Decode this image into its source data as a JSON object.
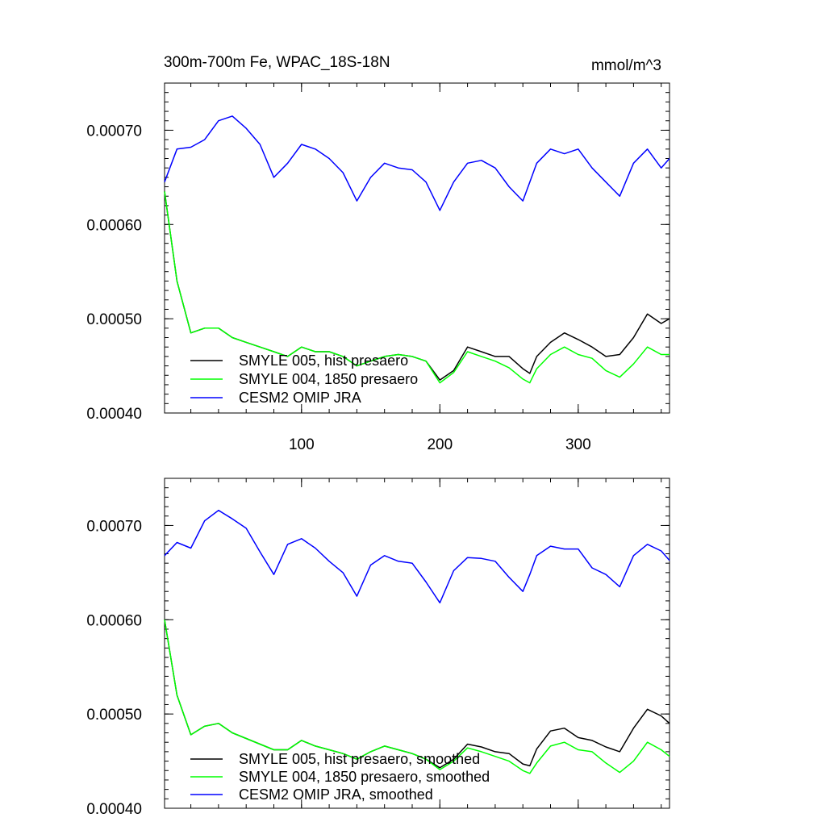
{
  "chart_data": [
    {
      "type": "line",
      "title": "300m-700m Fe, WPAC_18S-18N",
      "units": "mmol/m^3",
      "xlim": [
        1,
        366
      ],
      "ylim": [
        0.0004,
        0.00075
      ],
      "xticks": [
        100,
        200,
        300
      ],
      "xtick_labels": [
        "100",
        "200",
        "300"
      ],
      "yticks": [
        0.0004,
        0.0005,
        0.0006,
        0.0007
      ],
      "ytick_labels": [
        "0.00040",
        "0.00050",
        "0.00060",
        "0.00070"
      ],
      "legend_position": "bottom-left",
      "x": [
        1,
        10,
        20,
        30,
        40,
        50,
        60,
        70,
        80,
        90,
        100,
        110,
        120,
        130,
        140,
        150,
        160,
        170,
        180,
        190,
        200,
        210,
        220,
        230,
        240,
        250,
        260,
        265,
        270,
        280,
        290,
        300,
        310,
        320,
        330,
        340,
        350,
        360,
        366
      ],
      "series": [
        {
          "name": "SMYLE 005, hist presaero",
          "color": "#000000",
          "values": [
            0.000635,
            0.00054,
            0.000485,
            0.00049,
            0.00049,
            0.00048,
            0.000475,
            0.00047,
            0.000465,
            0.00046,
            0.00047,
            0.000465,
            0.000465,
            0.00046,
            0.00045,
            0.000455,
            0.00046,
            0.000462,
            0.00046,
            0.000455,
            0.000435,
            0.000445,
            0.00047,
            0.000465,
            0.00046,
            0.00046,
            0.000447,
            0.000442,
            0.00046,
            0.000475,
            0.000485,
            0.000478,
            0.00047,
            0.00046,
            0.000462,
            0.00048,
            0.000505,
            0.000495,
            0.0005
          ]
        },
        {
          "name": "SMYLE 004, 1850 presaero",
          "color": "#00ff00",
          "values": [
            0.000635,
            0.00054,
            0.000485,
            0.00049,
            0.00049,
            0.00048,
            0.000475,
            0.00047,
            0.000465,
            0.00046,
            0.00047,
            0.000465,
            0.000465,
            0.00046,
            0.00045,
            0.000455,
            0.00046,
            0.000462,
            0.00046,
            0.000455,
            0.000432,
            0.000443,
            0.000465,
            0.00046,
            0.000455,
            0.000448,
            0.000436,
            0.000432,
            0.000447,
            0.000462,
            0.00047,
            0.000462,
            0.000458,
            0.000445,
            0.000438,
            0.000452,
            0.00047,
            0.000462,
            0.000462
          ]
        },
        {
          "name": "CESM2 OMIP JRA",
          "color": "#0000ff",
          "values": [
            0.000645,
            0.00068,
            0.000682,
            0.00069,
            0.00071,
            0.000715,
            0.000702,
            0.000685,
            0.00065,
            0.000665,
            0.000685,
            0.00068,
            0.00067,
            0.000655,
            0.000625,
            0.00065,
            0.000665,
            0.00066,
            0.000658,
            0.000645,
            0.000615,
            0.000645,
            0.000665,
            0.000668,
            0.00066,
            0.00064,
            0.000625,
            0.000645,
            0.000665,
            0.00068,
            0.000675,
            0.00068,
            0.00066,
            0.000645,
            0.00063,
            0.000665,
            0.00068,
            0.00066,
            0.00067
          ]
        }
      ]
    },
    {
      "type": "line",
      "title": "",
      "xlim": [
        1,
        366
      ],
      "ylim": [
        0.0004,
        0.00075
      ],
      "yticks": [
        0.0004,
        0.0005,
        0.0006,
        0.0007
      ],
      "ytick_labels": [
        "0.00040",
        "0.00050",
        "0.00060",
        "0.00070"
      ],
      "legend_position": "bottom-left",
      "x": [
        1,
        10,
        20,
        30,
        40,
        50,
        60,
        70,
        80,
        90,
        100,
        110,
        120,
        130,
        140,
        150,
        160,
        170,
        180,
        190,
        200,
        210,
        220,
        230,
        240,
        250,
        260,
        265,
        270,
        280,
        290,
        300,
        310,
        320,
        330,
        340,
        350,
        360,
        366
      ],
      "series": [
        {
          "name": "SMYLE 005, hist presaero, smoothed",
          "color": "#000000",
          "values": [
            0.0006,
            0.00052,
            0.000478,
            0.000487,
            0.00049,
            0.00048,
            0.000474,
            0.000468,
            0.000462,
            0.000462,
            0.000472,
            0.000466,
            0.000462,
            0.000458,
            0.000452,
            0.00046,
            0.000466,
            0.000462,
            0.000458,
            0.000452,
            0.000443,
            0.000452,
            0.000468,
            0.000465,
            0.00046,
            0.000458,
            0.000447,
            0.000445,
            0.000463,
            0.000482,
            0.000485,
            0.000475,
            0.000472,
            0.000465,
            0.00046,
            0.000485,
            0.000505,
            0.000498,
            0.00049
          ]
        },
        {
          "name": "SMYLE 004, 1850 presaero, smoothed",
          "color": "#00ff00",
          "values": [
            0.0006,
            0.00052,
            0.000478,
            0.000487,
            0.00049,
            0.00048,
            0.000474,
            0.000468,
            0.000462,
            0.000462,
            0.000472,
            0.000466,
            0.000462,
            0.000458,
            0.000452,
            0.00046,
            0.000466,
            0.000462,
            0.000458,
            0.000452,
            0.000441,
            0.00045,
            0.000464,
            0.00046,
            0.000455,
            0.00045,
            0.00044,
            0.000437,
            0.000448,
            0.000466,
            0.00047,
            0.000462,
            0.00046,
            0.000448,
            0.000438,
            0.00045,
            0.00047,
            0.000462,
            0.000455
          ]
        },
        {
          "name": "CESM2 OMIP JRA, smoothed",
          "color": "#0000ff",
          "values": [
            0.000668,
            0.000682,
            0.000676,
            0.000705,
            0.000716,
            0.000707,
            0.000697,
            0.000672,
            0.000648,
            0.00068,
            0.000686,
            0.000676,
            0.000662,
            0.00065,
            0.000625,
            0.000658,
            0.000668,
            0.000662,
            0.00066,
            0.00064,
            0.000618,
            0.000652,
            0.000666,
            0.000665,
            0.000662,
            0.000645,
            0.00063,
            0.000648,
            0.000668,
            0.000678,
            0.000675,
            0.000675,
            0.000655,
            0.000648,
            0.000635,
            0.000668,
            0.00068,
            0.000673,
            0.000663
          ]
        }
      ]
    }
  ]
}
